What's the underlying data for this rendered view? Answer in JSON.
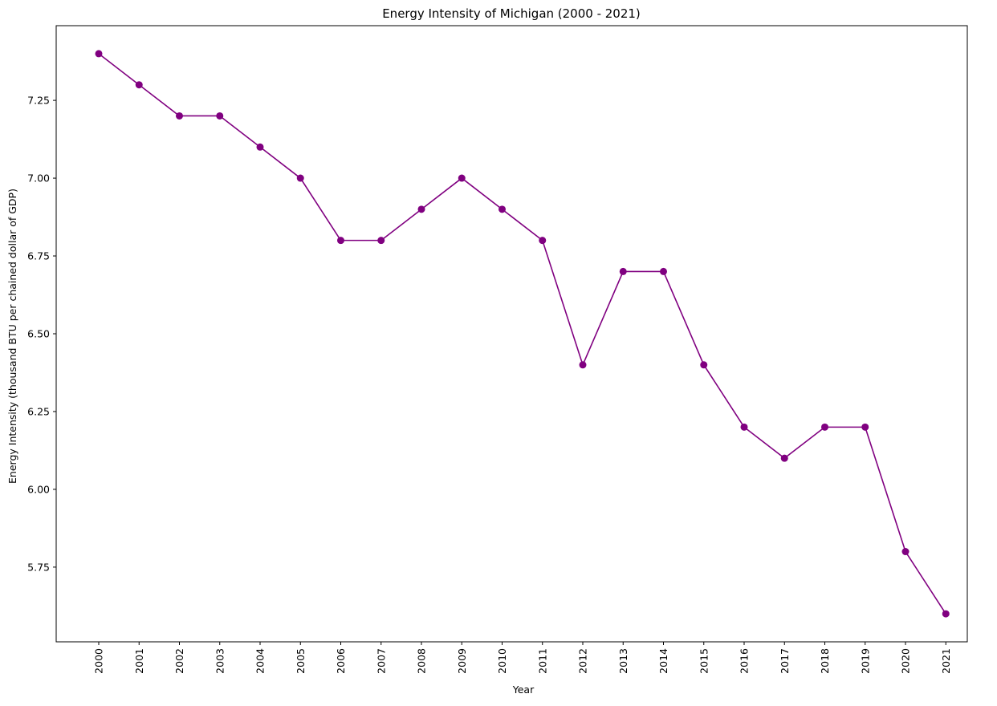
{
  "chart_data": {
    "type": "line",
    "title": "Energy Intensity of Michigan (2000 - 2021)",
    "xlabel": "Year",
    "ylabel": "Energy Intensity (thousand BTU per chained dollar of GDP)",
    "x": [
      "2000",
      "2001",
      "2002",
      "2003",
      "2004",
      "2005",
      "2006",
      "2007",
      "2008",
      "2009",
      "2010",
      "2011",
      "2012",
      "2013",
      "2014",
      "2015",
      "2016",
      "2017",
      "2018",
      "2019",
      "2020",
      "2021"
    ],
    "series": [
      {
        "values": [
          7.4,
          7.3,
          7.2,
          7.2,
          7.1,
          7.0,
          6.8,
          6.8,
          6.9,
          7.0,
          6.9,
          6.8,
          6.4,
          6.7,
          6.7,
          6.4,
          6.2,
          6.1,
          6.2,
          6.2,
          5.8,
          5.6
        ],
        "color": "#800080",
        "marker": "circle"
      }
    ],
    "yticks": [
      "5.75",
      "6.00",
      "6.25",
      "6.50",
      "6.75",
      "7.00",
      "7.25"
    ],
    "ylim": [
      5.51,
      7.49
    ],
    "grid": false,
    "legend": "none",
    "xtick_rotation": "vertical"
  }
}
